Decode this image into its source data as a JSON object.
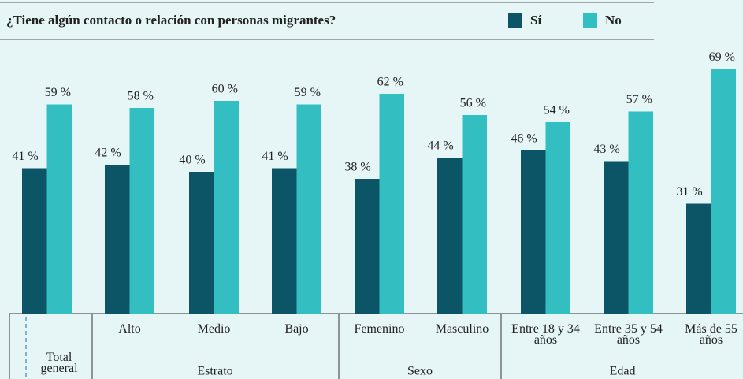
{
  "chart_data": {
    "type": "bar",
    "title": "¿Tiene algún contacto o relación con personas migrantes?",
    "categories": [
      "Total general",
      "Alto",
      "Medio",
      "Bajo",
      "Femenino",
      "Masculino",
      "Entre 18 y 34 años",
      "Entre 35 y 54 años",
      "Más de 55 años"
    ],
    "group_labels": [
      "Estrato",
      "Sexo",
      "Edad"
    ],
    "series": [
      {
        "name": "Sí",
        "color": "#0b5566",
        "values": [
          41,
          42,
          40,
          41,
          38,
          44,
          46,
          43,
          31
        ],
        "value_labels": [
          "41 %",
          "42 %",
          "40 %",
          "41 %",
          "38 %",
          "44 %",
          "46 %",
          "43 %",
          "31 %"
        ]
      },
      {
        "name": "No",
        "color": "#33bfc2",
        "values": [
          59,
          58,
          60,
          59,
          62,
          56,
          54,
          57,
          69
        ],
        "value_labels": [
          "59 %",
          "58 %",
          "60 %",
          "59 %",
          "62 %",
          "56 %",
          "54 %",
          "57 %",
          "69 %"
        ]
      }
    ],
    "ylim": [
      0,
      80
    ]
  }
}
